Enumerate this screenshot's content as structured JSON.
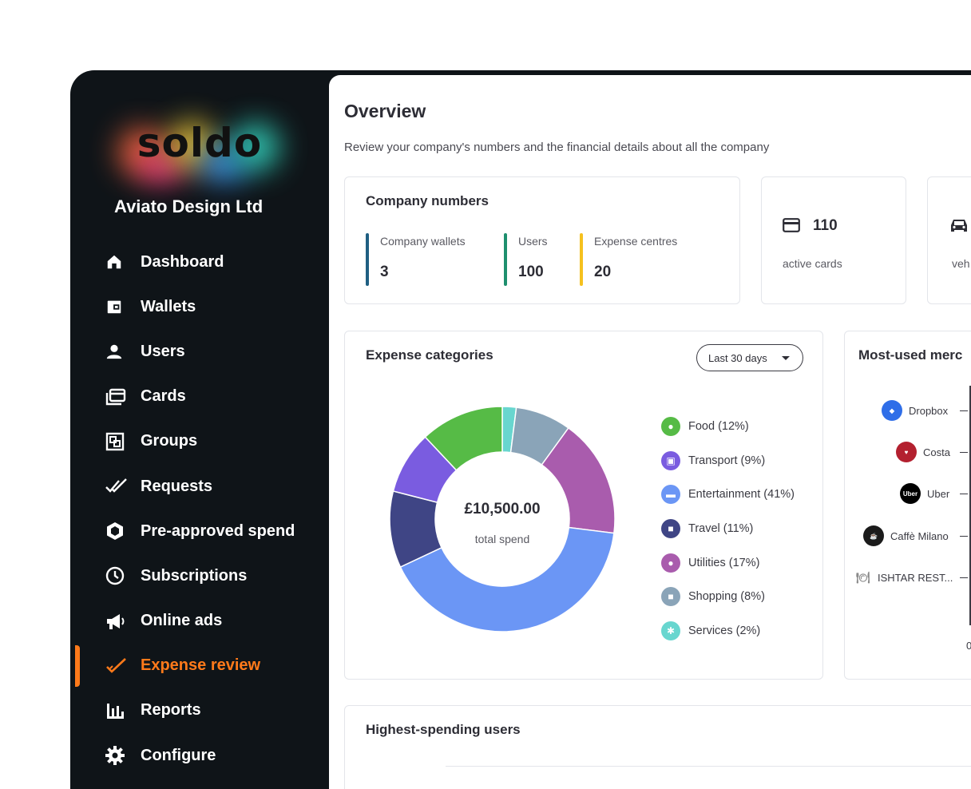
{
  "brand": {
    "logo_text": "soldo"
  },
  "company_name": "Aviato Design Ltd",
  "nav": [
    {
      "label": "Dashboard",
      "icon": "home-icon"
    },
    {
      "label": "Wallets",
      "icon": "wallet-icon"
    },
    {
      "label": "Users",
      "icon": "user-icon"
    },
    {
      "label": "Cards",
      "icon": "cards-icon"
    },
    {
      "label": "Groups",
      "icon": "groups-icon"
    },
    {
      "label": "Requests",
      "icon": "double-check-icon"
    },
    {
      "label": "Pre-approved spend",
      "icon": "hexagon-icon"
    },
    {
      "label": "Subscriptions",
      "icon": "clock-icon"
    },
    {
      "label": "Online ads",
      "icon": "megaphone-icon"
    },
    {
      "label": "Expense review",
      "icon": "check-icon",
      "active": true
    },
    {
      "label": "Reports",
      "icon": "bar-chart-icon"
    },
    {
      "label": "Configure",
      "icon": "gear-icon"
    }
  ],
  "overview": {
    "title": "Overview",
    "subtitle": "Review your company's numbers and the financial details about all the company"
  },
  "company_numbers": {
    "title": "Company numbers",
    "items": [
      {
        "label": "Company wallets",
        "value": "3",
        "color": "#1f5f82"
      },
      {
        "label": "Users",
        "value": "100",
        "color": "#1e8f6e"
      },
      {
        "label": "Expense centres",
        "value": "20",
        "color": "#f5c11f"
      }
    ]
  },
  "active_cards": {
    "value": "110",
    "label": "active cards"
  },
  "vehicles": {
    "label": "veh"
  },
  "expense_categories": {
    "title": "Expense categories",
    "period": "Last 30 days",
    "total": "£10,500.00",
    "total_label": "total spend",
    "categories": [
      {
        "label": "Food (12%)",
        "color": "#56bb46",
        "icon": "apple-icon"
      },
      {
        "label": "Transport (9%)",
        "color": "#7a5ce0",
        "icon": "bus-icon"
      },
      {
        "label": "Entertainment (41%)",
        "color": "#6b96f5",
        "icon": "ticket-icon"
      },
      {
        "label": "Travel (11%)",
        "color": "#3f4585",
        "icon": "briefcase-icon"
      },
      {
        "label": "Utilities (17%)",
        "color": "#a95cad",
        "icon": "bulb-icon"
      },
      {
        "label": "Shopping (8%)",
        "color": "#8aa4b8",
        "icon": "bag-icon"
      },
      {
        "label": "Services (2%)",
        "color": "#68d6cf",
        "icon": "gears-icon"
      }
    ]
  },
  "chart_data": {
    "type": "pie",
    "title": "Expense categories",
    "categories": [
      "Food",
      "Transport",
      "Entertainment",
      "Travel",
      "Utilities",
      "Shopping",
      "Services"
    ],
    "values": [
      12,
      9,
      41,
      11,
      17,
      8,
      2
    ],
    "colors": [
      "#56bb46",
      "#7a5ce0",
      "#6b96f5",
      "#3f4585",
      "#a95cad",
      "#8aa4b8",
      "#68d6cf"
    ],
    "order_clockwise_from_top": [
      "Services",
      "Shopping",
      "Utilities",
      "Entertainment",
      "Travel",
      "Transport",
      "Food"
    ],
    "donut": true
  },
  "most_used_merchants": {
    "title": "Most-used merc",
    "merchants": [
      {
        "name": "Dropbox",
        "color": "#2f6ee8"
      },
      {
        "name": "Costa",
        "color": "#b3202f"
      },
      {
        "name": "Uber",
        "color": "#000000"
      },
      {
        "name": "Caffè Milano",
        "color": "#1b1b1b"
      },
      {
        "name": "ISHTAR REST...",
        "color": "#8a8a8a"
      }
    ],
    "axis_start": "0"
  },
  "highest_spending": {
    "title": "Highest-spending users"
  }
}
